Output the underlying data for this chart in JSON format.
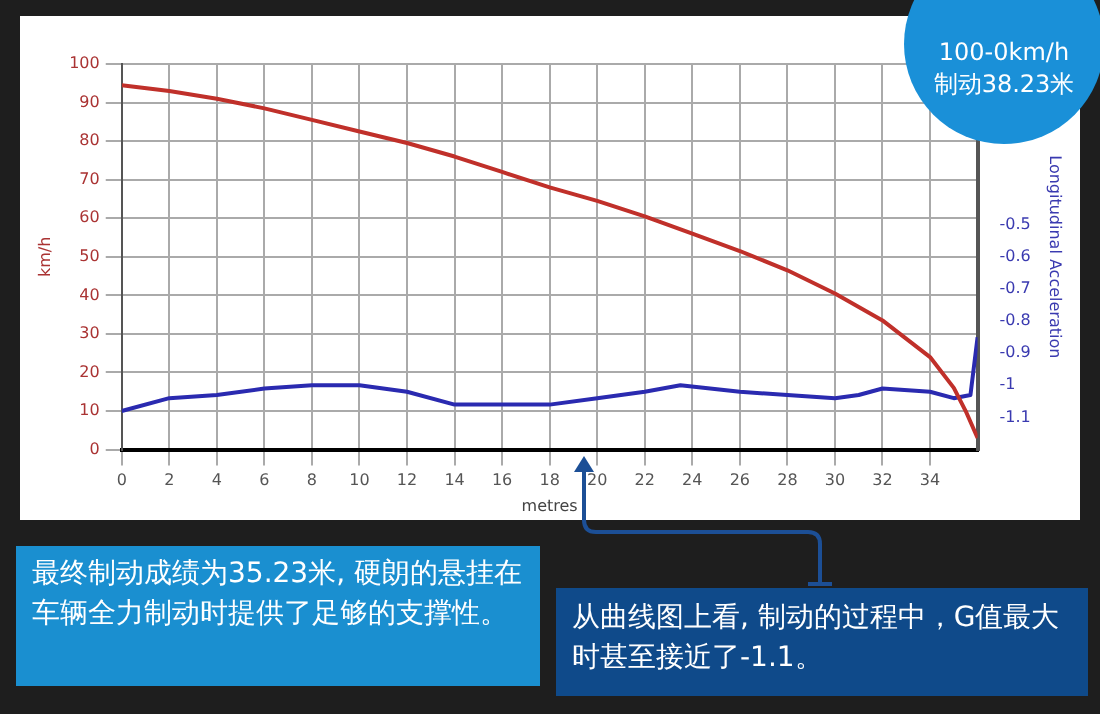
{
  "chart_data": {
    "type": "line",
    "xlabel": "metres",
    "ylabel": "km/h",
    "y2label": "Longitudinal Acceleration",
    "xlim": [
      0,
      36
    ],
    "xticks": [
      0,
      2,
      4,
      6,
      8,
      10,
      12,
      14,
      16,
      18,
      20,
      22,
      24,
      26,
      28,
      30,
      32,
      34
    ],
    "ylim": [
      0,
      100
    ],
    "yticks": [
      0,
      10,
      20,
      30,
      40,
      50,
      60,
      70,
      80,
      90,
      100
    ],
    "y2lim": [
      -1.2,
      0
    ],
    "y2ticks": [
      -1.1,
      -1,
      -0.9,
      -0.8,
      -0.7,
      -0.6,
      -0.5
    ],
    "grid": true,
    "series": [
      {
        "type": "line",
        "color": "#c0302a",
        "x": [
          0,
          2,
          4,
          6,
          8,
          10,
          12,
          14,
          16,
          18,
          20,
          22,
          24,
          26,
          28,
          30,
          32,
          34,
          35,
          35.5,
          36
        ],
        "values": [
          94.5,
          93,
          91,
          88.5,
          85.5,
          82.5,
          79.5,
          76,
          72,
          68,
          64.5,
          60.5,
          56,
          51.5,
          46.5,
          40.5,
          33.5,
          24,
          16,
          10,
          3
        ]
      },
      {
        "type": "line",
        "color": "#2a2ab0",
        "axis": "y2",
        "x": [
          0,
          2,
          4,
          6,
          8,
          10,
          12,
          14,
          16,
          18,
          20,
          22,
          23.5,
          26,
          28,
          30,
          31,
          32,
          34,
          35,
          35.7,
          36
        ],
        "values": [
          -1.08,
          -1.04,
          -1.03,
          -1.01,
          -1.0,
          -1.0,
          -1.02,
          -1.06,
          -1.06,
          -1.06,
          -1.04,
          -1.02,
          -1.0,
          -1.02,
          -1.03,
          -1.04,
          -1.03,
          -1.01,
          -1.02,
          -1.04,
          -1.03,
          -0.85
        ]
      }
    ],
    "annotations": [
      "100-0km/h\n制动38.23米",
      "最终制动成绩为35.23米, 硬朗的悬挂在车辆全力制动时提供了足够的支撑性。",
      "从曲线图上看, 制动的过程中，G值最大时甚至接近了-1.1。"
    ]
  }
}
